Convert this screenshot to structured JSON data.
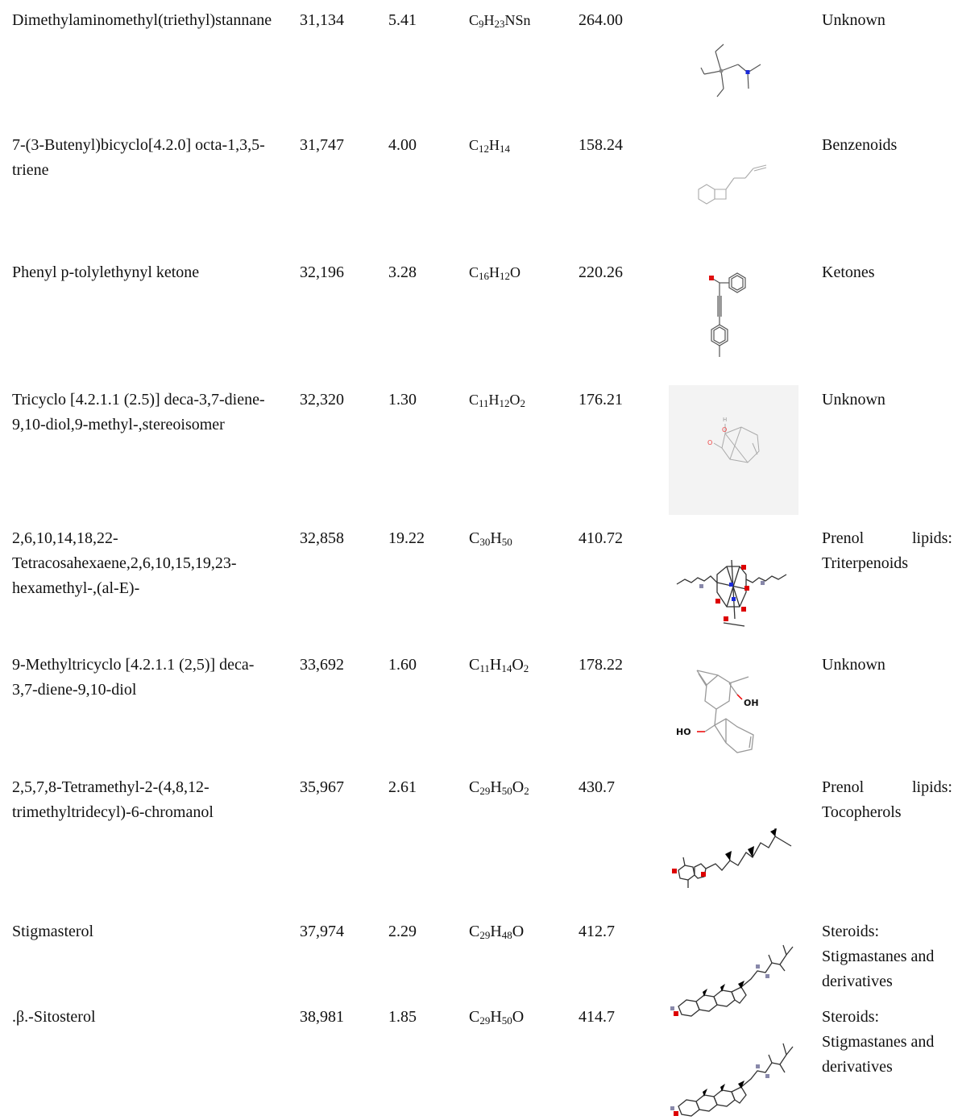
{
  "rows": [
    {
      "name": "Dimethylaminomethyl(triethyl)stannane",
      "rt": "31,134",
      "area": "5.41",
      "formula": [
        {
          "t": "C"
        },
        {
          "s": "9"
        },
        {
          "t": "H"
        },
        {
          "s": "23"
        },
        {
          "t": "NSn"
        }
      ],
      "mw": "264.00",
      "class": "Unknown",
      "structure_icon": "structure-dimethylaminomethyl-triethylstannane"
    },
    {
      "name": "7-(3-Butenyl)bicyclo[4.2.0] octa-1,3,5-triene",
      "rt": "31,747",
      "area": "4.00",
      "formula": [
        {
          "t": "C"
        },
        {
          "s": "12"
        },
        {
          "t": "H"
        },
        {
          "s": "14"
        }
      ],
      "mw": "158.24",
      "class": "Benzenoids",
      "structure_icon": "structure-butenyl-bicyclooctatriene"
    },
    {
      "name": "Phenyl p-tolylethynyl ketone",
      "rt": "32,196",
      "area": "3.28",
      "formula": [
        {
          "t": "C"
        },
        {
          "s": "16"
        },
        {
          "t": "H"
        },
        {
          "s": "12"
        },
        {
          "t": "O"
        }
      ],
      "mw": "220.26",
      "class": "Ketones",
      "structure_icon": "structure-phenyl-tolylethynyl-ketone"
    },
    {
      "name": "Tricyclo [4.2.1.1 (2.5)] deca-3,7-diene-9,10-diol,9-methyl-,stereoisomer",
      "rt": "32,320",
      "area": "1.30",
      "formula": [
        {
          "t": "C"
        },
        {
          "s": "11"
        },
        {
          "t": "H"
        },
        {
          "s": "12"
        },
        {
          "t": "O"
        },
        {
          "s": "2"
        }
      ],
      "mw": "176.21",
      "class": "Unknown",
      "structure_icon": "structure-tricyclodecadienediol-stereoisomer"
    },
    {
      "name": "2,6,10,14,18,22-Tetracosahexaene,2,6,10,15,19,23-hexamethyl-,(al-E)-",
      "rt": "32,858",
      "area": "19.22",
      "formula": [
        {
          "t": "C"
        },
        {
          "s": "30"
        },
        {
          "t": "H"
        },
        {
          "s": "50"
        }
      ],
      "mw": "410.72",
      "class": "Prenol lipids: Triterpenoids",
      "structure_icon": "structure-squalene"
    },
    {
      "name": "9-Methyltricyclo [4.2.1.1 (2,5)] deca-3,7-diene-9,10-diol",
      "rt": "33,692",
      "area": "1.60",
      "formula": [
        {
          "t": "C"
        },
        {
          "s": "11"
        },
        {
          "t": "H"
        },
        {
          "s": "14"
        },
        {
          "t": "O"
        },
        {
          "s": "2"
        }
      ],
      "mw": "178.22",
      "class": "Unknown",
      "structure_icon": "structure-methyltricyclodecadienediol"
    },
    {
      "name": "2,5,7,8-Tetramethyl-2-(4,8,12-trimethyltridecyl)-6-chromanol",
      "rt": "35,967",
      "area": "2.61",
      "formula": [
        {
          "t": "C"
        },
        {
          "s": "29"
        },
        {
          "t": "H"
        },
        {
          "s": "50"
        },
        {
          "t": "O"
        },
        {
          "s": "2"
        }
      ],
      "mw": "430.7",
      "class": "Prenol lipids: Tocopherols",
      "structure_icon": "structure-tocopherol"
    },
    {
      "name": "Stigmasterol",
      "rt": "37,974",
      "area": "2.29",
      "formula": [
        {
          "t": "C"
        },
        {
          "s": "29"
        },
        {
          "t": "H"
        },
        {
          "s": "48"
        },
        {
          "t": "O"
        }
      ],
      "mw": "412.7",
      "class": "Steroids: Stigmastanes and derivatives",
      "structure_icon": "structure-stigmasterol"
    },
    {
      "name": ".β.-Sitosterol",
      "rt": "38,981",
      "area": "1.85",
      "formula": [
        {
          "t": "C"
        },
        {
          "s": "29"
        },
        {
          "t": "H"
        },
        {
          "s": "50"
        },
        {
          "t": "O"
        }
      ],
      "mw": "414.7",
      "class": "Steroids: Stigmastanes and derivatives",
      "structure_icon": "structure-sitosterol"
    }
  ]
}
